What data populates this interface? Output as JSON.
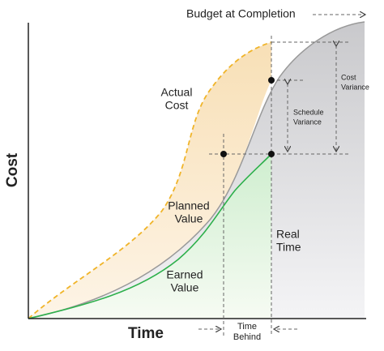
{
  "axes": {
    "y_label": "Cost",
    "x_label": "Time"
  },
  "annotations": {
    "budget_at_completion": "Budget at Completion",
    "actual_cost": [
      "Actual",
      "Cost"
    ],
    "planned_value": [
      "Planned",
      "Value"
    ],
    "earned_value": [
      "Earned",
      "Value"
    ],
    "real_time": [
      "Real",
      "Time"
    ],
    "cost_variance": [
      "Cost",
      "Variance"
    ],
    "schedule_variance": [
      "Schedule",
      "Variance"
    ],
    "time_behind": [
      "Time",
      "Behind"
    ]
  }
}
